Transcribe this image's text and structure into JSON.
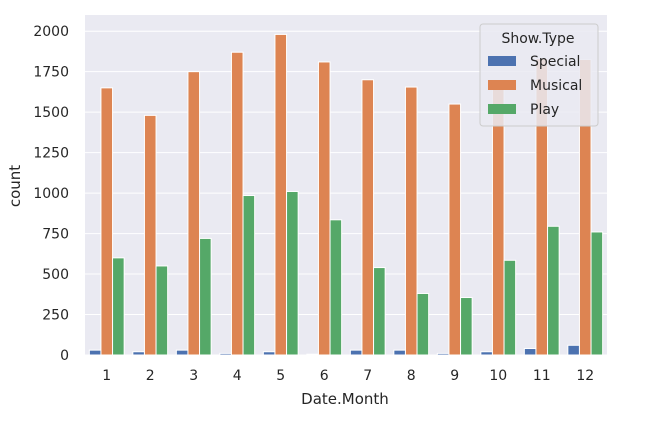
{
  "chart_data": {
    "type": "bar",
    "title": "",
    "xlabel": "Date.Month",
    "ylabel": "count",
    "categories": [
      "1",
      "2",
      "3",
      "4",
      "5",
      "6",
      "7",
      "8",
      "9",
      "10",
      "11",
      "12"
    ],
    "ylim": [
      0,
      2100
    ],
    "yticks": [
      0,
      250,
      500,
      750,
      1000,
      1250,
      1500,
      1750,
      2000
    ],
    "grid": true,
    "legend": {
      "title": "Show.Type",
      "position": "top-right"
    },
    "background_color": "#eaeaf2",
    "series": [
      {
        "name": "Special",
        "color": "#4c72b0",
        "values": [
          30,
          20,
          30,
          10,
          20,
          5,
          30,
          30,
          10,
          20,
          40,
          60
        ]
      },
      {
        "name": "Musical",
        "color": "#dd8452",
        "values": [
          1650,
          1480,
          1750,
          1870,
          1980,
          1810,
          1700,
          1655,
          1550,
          1645,
          1830,
          1825
        ]
      },
      {
        "name": "Play",
        "color": "#55a868",
        "values": [
          600,
          550,
          720,
          985,
          1010,
          835,
          540,
          380,
          355,
          585,
          795,
          760
        ]
      }
    ]
  }
}
